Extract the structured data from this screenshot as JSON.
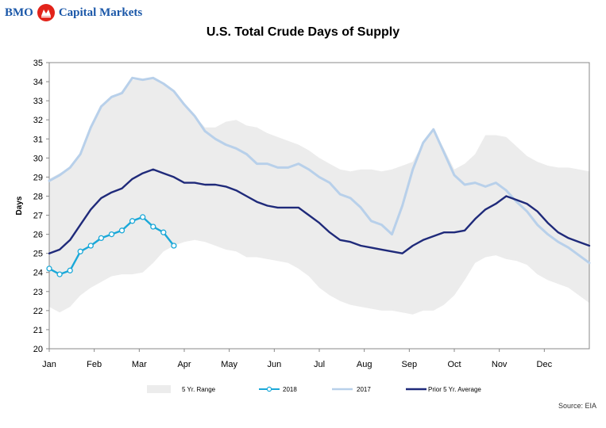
{
  "header": {
    "logo_left": "BMO",
    "logo_right": "Capital Markets",
    "logo_mark_icon": "bmo-roundel-icon",
    "brand_color": "#e2231a",
    "logo_text_color": "#1a57a8"
  },
  "source": "Source: EIA",
  "chart_data": {
    "type": "line",
    "title": "U.S. Total Crude Days of Supply",
    "ylabel": "Days",
    "xlabel": "",
    "ylim": [
      20,
      35
    ],
    "yticks": [
      20,
      21,
      22,
      23,
      24,
      25,
      26,
      27,
      28,
      29,
      30,
      31,
      32,
      33,
      34,
      35
    ],
    "categories": [
      "Jan",
      "Feb",
      "Mar",
      "Apr",
      "May",
      "Jun",
      "Jul",
      "Aug",
      "Sep",
      "Oct",
      "Nov",
      "Dec"
    ],
    "grid": false,
    "legend_position": "bottom",
    "x_unit": "week of year (week 1 = first week of Jan)",
    "range": {
      "name": "5 Yr. Range",
      "color": "#ececec",
      "x": [
        1,
        2,
        3,
        4,
        5,
        6,
        7,
        8,
        9,
        10,
        11,
        12,
        13,
        14,
        15,
        16,
        17,
        18,
        19,
        20,
        21,
        22,
        23,
        24,
        25,
        26,
        27,
        28,
        29,
        30,
        31,
        32,
        33,
        34,
        35,
        36,
        37,
        38,
        39,
        40,
        41,
        42,
        43,
        44,
        45,
        46,
        47,
        48,
        49,
        50,
        51,
        52,
        53
      ],
      "low": [
        22.2,
        21.9,
        22.2,
        22.8,
        23.2,
        23.5,
        23.8,
        23.9,
        23.9,
        24.0,
        24.5,
        25.1,
        25.4,
        25.6,
        25.7,
        25.6,
        25.4,
        25.2,
        25.1,
        24.8,
        24.8,
        24.7,
        24.6,
        24.5,
        24.2,
        23.8,
        23.2,
        22.8,
        22.5,
        22.3,
        22.2,
        22.1,
        22.0,
        22.0,
        21.9,
        21.8,
        22.0,
        22.0,
        22.3,
        22.8,
        23.6,
        24.5,
        24.8,
        24.9,
        24.7,
        24.6,
        24.4,
        23.9,
        23.6,
        23.4,
        23.2,
        22.8,
        22.4
      ],
      "high": [
        28.9,
        29.2,
        29.5,
        30.3,
        31.5,
        32.7,
        33.2,
        33.5,
        34.1,
        34.1,
        34.2,
        33.9,
        33.5,
        32.8,
        32.2,
        31.6,
        31.6,
        31.9,
        32.0,
        31.7,
        31.6,
        31.3,
        31.1,
        30.9,
        30.7,
        30.4,
        30.0,
        29.7,
        29.4,
        29.3,
        29.4,
        29.4,
        29.3,
        29.4,
        29.6,
        29.8,
        30.8,
        31.5,
        30.5,
        29.4,
        29.7,
        30.2,
        31.2,
        31.2,
        31.1,
        30.6,
        30.1,
        29.8,
        29.6,
        29.5,
        29.5,
        29.4,
        29.3
      ]
    },
    "series": [
      {
        "name": "2017",
        "color": "#b8d0ea",
        "x": [
          1,
          2,
          3,
          4,
          5,
          6,
          7,
          8,
          9,
          10,
          11,
          12,
          13,
          14,
          15,
          16,
          17,
          18,
          19,
          20,
          21,
          22,
          23,
          24,
          25,
          26,
          27,
          28,
          29,
          30,
          31,
          32,
          33,
          34,
          35,
          36,
          37,
          38,
          39,
          40,
          41,
          42,
          43,
          44,
          45,
          46,
          47,
          48,
          49,
          50,
          51,
          52,
          53
        ],
        "values": [
          28.8,
          29.1,
          29.5,
          30.2,
          31.6,
          32.7,
          33.2,
          33.4,
          34.2,
          34.1,
          34.2,
          33.9,
          33.5,
          32.8,
          32.2,
          31.4,
          31.0,
          30.7,
          30.5,
          30.2,
          29.7,
          29.7,
          29.5,
          29.5,
          29.7,
          29.4,
          29.0,
          28.7,
          28.1,
          27.9,
          27.4,
          26.7,
          26.5,
          26.0,
          27.5,
          29.4,
          30.8,
          31.5,
          30.3,
          29.1,
          28.6,
          28.7,
          28.5,
          28.7,
          28.3,
          27.7,
          27.2,
          26.5,
          26.0,
          25.6,
          25.3,
          24.9,
          24.5
        ]
      },
      {
        "name": "Prior 5 Yr. Average",
        "color": "#1f2a7a",
        "x": [
          1,
          2,
          3,
          4,
          5,
          6,
          7,
          8,
          9,
          10,
          11,
          12,
          13,
          14,
          15,
          16,
          17,
          18,
          19,
          20,
          21,
          22,
          23,
          24,
          25,
          26,
          27,
          28,
          29,
          30,
          31,
          32,
          33,
          34,
          35,
          36,
          37,
          38,
          39,
          40,
          41,
          42,
          43,
          44,
          45,
          46,
          47,
          48,
          49,
          50,
          51,
          52,
          53
        ],
        "values": [
          25.0,
          25.2,
          25.7,
          26.5,
          27.3,
          27.9,
          28.2,
          28.4,
          28.9,
          29.2,
          29.4,
          29.2,
          29.0,
          28.7,
          28.7,
          28.6,
          28.6,
          28.5,
          28.3,
          28.0,
          27.7,
          27.5,
          27.4,
          27.4,
          27.4,
          27.0,
          26.6,
          26.1,
          25.7,
          25.6,
          25.4,
          25.3,
          25.2,
          25.1,
          25.0,
          25.4,
          25.7,
          25.9,
          26.1,
          26.1,
          26.2,
          26.8,
          27.3,
          27.6,
          28.0,
          27.8,
          27.6,
          27.2,
          26.6,
          26.1,
          25.8,
          25.6,
          25.4
        ]
      },
      {
        "name": "2018",
        "color": "#1aa8d8",
        "marker": "circle",
        "x": [
          1,
          2,
          3,
          4,
          5,
          6,
          7,
          8,
          9,
          10,
          11,
          12,
          13
        ],
        "values": [
          24.2,
          23.9,
          24.1,
          25.1,
          25.4,
          25.8,
          26.0,
          26.2,
          26.7,
          26.9,
          26.4,
          26.1,
          25.4
        ]
      }
    ],
    "legend": [
      "5 Yr. Range",
      "2018",
      "2017",
      "Prior 5 Yr. Average"
    ]
  }
}
